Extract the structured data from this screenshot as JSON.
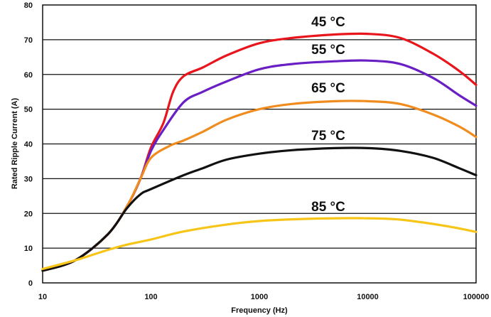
{
  "chart_data": {
    "type": "line",
    "title": "",
    "xlabel": "Frequency  (Hz)",
    "ylabel": "Rated Ripple Current (A)",
    "xscale": "log",
    "xlim": [
      10,
      100000
    ],
    "ylim": [
      0,
      80
    ],
    "x_ticks": [
      "10",
      "100",
      "1000",
      "10000",
      "100000"
    ],
    "y_ticks": [
      "0",
      "10",
      "20",
      "30",
      "40",
      "50",
      "60",
      "70",
      "80"
    ],
    "grid": "horizontal",
    "series": [
      {
        "name": "45 °C",
        "color": "#e8161c",
        "points": [
          [
            10,
            3.5
          ],
          [
            20,
            6.5
          ],
          [
            40,
            14
          ],
          [
            60,
            22
          ],
          [
            80,
            30
          ],
          [
            100,
            39
          ],
          [
            130,
            46
          ],
          [
            160,
            55
          ],
          [
            200,
            59.5
          ],
          [
            300,
            62
          ],
          [
            500,
            65.5
          ],
          [
            1000,
            69
          ],
          [
            2000,
            70.5
          ],
          [
            5000,
            71.5
          ],
          [
            10000,
            71.7
          ],
          [
            20000,
            70.5
          ],
          [
            40000,
            66
          ],
          [
            70000,
            61
          ],
          [
            100000,
            57
          ]
        ]
      },
      {
        "name": "55 °C",
        "color": "#6a1fc4",
        "points": [
          [
            10,
            3.5
          ],
          [
            20,
            6.5
          ],
          [
            40,
            14
          ],
          [
            60,
            22
          ],
          [
            80,
            30
          ],
          [
            100,
            38
          ],
          [
            130,
            44
          ],
          [
            200,
            52
          ],
          [
            300,
            55
          ],
          [
            500,
            58
          ],
          [
            1000,
            61.5
          ],
          [
            2000,
            63
          ],
          [
            5000,
            63.8
          ],
          [
            10000,
            64
          ],
          [
            20000,
            63
          ],
          [
            40000,
            59
          ],
          [
            70000,
            54
          ],
          [
            100000,
            51
          ]
        ]
      },
      {
        "name": "65 °C",
        "color": "#f08c1e",
        "points": [
          [
            10,
            3.5
          ],
          [
            20,
            6.5
          ],
          [
            40,
            14
          ],
          [
            60,
            22
          ],
          [
            80,
            30
          ],
          [
            100,
            36
          ],
          [
            150,
            39.5
          ],
          [
            200,
            41
          ],
          [
            300,
            43.5
          ],
          [
            500,
            47
          ],
          [
            1000,
            50
          ],
          [
            2000,
            51.5
          ],
          [
            5000,
            52.3
          ],
          [
            10000,
            52.3
          ],
          [
            20000,
            51.5
          ],
          [
            40000,
            48.5
          ],
          [
            70000,
            45
          ],
          [
            100000,
            42
          ]
        ]
      },
      {
        "name": "75 °C",
        "color": "#111111",
        "points": [
          [
            10,
            3.5
          ],
          [
            20,
            6.5
          ],
          [
            40,
            14
          ],
          [
            60,
            21.5
          ],
          [
            80,
            25.5
          ],
          [
            100,
            27
          ],
          [
            200,
            31
          ],
          [
            300,
            33
          ],
          [
            500,
            35.5
          ],
          [
            1000,
            37.2
          ],
          [
            2000,
            38.2
          ],
          [
            5000,
            38.8
          ],
          [
            10000,
            38.8
          ],
          [
            20000,
            38
          ],
          [
            40000,
            36
          ],
          [
            70000,
            33
          ],
          [
            100000,
            31
          ]
        ]
      },
      {
        "name": "85 °C",
        "color": "#f6c518",
        "points": [
          [
            10,
            4
          ],
          [
            20,
            6.5
          ],
          [
            40,
            9.5
          ],
          [
            60,
            11
          ],
          [
            100,
            12.5
          ],
          [
            200,
            14.8
          ],
          [
            500,
            16.8
          ],
          [
            1000,
            17.8
          ],
          [
            2000,
            18.3
          ],
          [
            5000,
            18.6
          ],
          [
            10000,
            18.6
          ],
          [
            20000,
            18.2
          ],
          [
            50000,
            16.5
          ],
          [
            100000,
            14.7
          ]
        ]
      }
    ]
  }
}
